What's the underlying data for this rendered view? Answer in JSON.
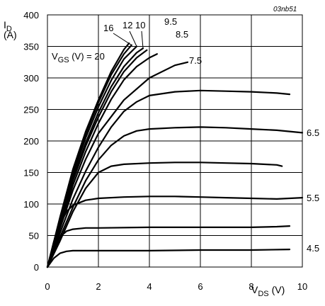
{
  "doc_id": "03nb51",
  "colors": {
    "line": "#000000",
    "grid": "#000000",
    "background": "#ffffff"
  },
  "chart_data": {
    "type": "line",
    "title": "",
    "xlabel": {
      "symbol": "V",
      "sub": "DS",
      "unit": "(V)"
    },
    "ylabel": {
      "symbol": "I",
      "sub": "D",
      "unit": "(A)"
    },
    "xlim": [
      0,
      10
    ],
    "ylim": [
      0,
      400
    ],
    "x_ticks": [
      0,
      2,
      4,
      6,
      8,
      10
    ],
    "y_ticks": [
      0,
      50,
      100,
      150,
      200,
      250,
      300,
      350,
      400
    ],
    "grid": true,
    "legend_title": {
      "prefix": "V",
      "sub": "GS",
      "suffix": " (V) = 20"
    },
    "series": [
      {
        "name": "20",
        "x": [
          0,
          0.5,
          1.0,
          1.5,
          2.0,
          2.5,
          3.0,
          3.2
        ],
        "y": [
          0,
          80,
          155,
          215,
          265,
          310,
          345,
          355
        ]
      },
      {
        "name": "16",
        "x": [
          0,
          0.5,
          1.0,
          1.5,
          2.0,
          2.5,
          3.0,
          3.3
        ],
        "y": [
          0,
          78,
          152,
          211,
          261,
          305,
          338,
          352
        ]
      },
      {
        "name": "12",
        "x": [
          0,
          0.5,
          1.0,
          1.5,
          2.0,
          2.5,
          3.0,
          3.5
        ],
        "y": [
          0,
          75,
          147,
          205,
          254,
          296,
          330,
          350
        ]
      },
      {
        "name": "10",
        "x": [
          0,
          0.5,
          1.0,
          1.5,
          2.0,
          2.5,
          3.0,
          3.5,
          3.75
        ],
        "y": [
          0,
          72,
          141,
          197,
          245,
          286,
          318,
          340,
          347
        ]
      },
      {
        "name": "9.5",
        "x": [
          0,
          0.5,
          1.0,
          1.5,
          2.0,
          2.5,
          3.0,
          3.5,
          3.9
        ],
        "y": [
          0,
          70,
          137,
          192,
          238,
          278,
          310,
          332,
          344
        ]
      },
      {
        "name": "8.5",
        "x": [
          0,
          0.5,
          1.0,
          1.5,
          2.0,
          2.5,
          3.0,
          3.5,
          4.0,
          4.3
        ],
        "y": [
          0,
          66,
          130,
          183,
          228,
          266,
          297,
          318,
          332,
          338
        ]
      },
      {
        "name": "7.5",
        "x": [
          0,
          0.5,
          1.0,
          1.5,
          2.0,
          3.0,
          4.0,
          5.0,
          5.5
        ],
        "y": [
          0,
          62,
          122,
          171,
          212,
          265,
          300,
          320,
          325
        ]
      },
      {
        "name": "",
        "x": [
          0,
          0.5,
          1.0,
          1.5,
          2.0,
          2.5,
          3.0,
          3.5,
          4.0,
          5.0,
          6.0,
          7.0,
          8.0,
          9.0,
          9.5
        ],
        "y": [
          0,
          55,
          108,
          152,
          190,
          222,
          247,
          262,
          272,
          278,
          280,
          279,
          278,
          276,
          274
        ]
      },
      {
        "name": "6.5",
        "x": [
          0,
          0.5,
          1.0,
          1.5,
          2.0,
          2.5,
          3.0,
          3.5,
          4.0,
          5.0,
          6.0,
          7.0,
          8.0,
          9.0,
          10.0
        ],
        "y": [
          0,
          48,
          95,
          137,
          170,
          193,
          208,
          216,
          219,
          221,
          222,
          221,
          219,
          217,
          213
        ]
      },
      {
        "name": "",
        "x": [
          0,
          0.5,
          1.0,
          1.5,
          2.0,
          2.5,
          3.0,
          4.0,
          5.0,
          6.0,
          7.0,
          8.0,
          9.0,
          9.2
        ],
        "y": [
          0,
          42,
          88,
          125,
          150,
          160,
          163,
          165,
          166,
          166,
          165,
          164,
          162,
          160
        ]
      },
      {
        "name": "5.5",
        "x": [
          0,
          0.25,
          0.5,
          0.75,
          1.0,
          1.5,
          2.0,
          3.0,
          4.0,
          5.0,
          6.0,
          7.0,
          8.0,
          9.0,
          10.0
        ],
        "y": [
          0,
          40,
          68,
          88,
          98,
          106,
          109,
          111,
          112,
          112,
          111,
          110,
          109,
          108,
          110
        ]
      },
      {
        "name": "",
        "x": [
          0,
          0.25,
          0.5,
          0.75,
          1.0,
          1.5,
          2.0,
          4.0,
          6.0,
          8.0,
          9.0,
          9.5
        ],
        "y": [
          0,
          30,
          48,
          57,
          60,
          62,
          62,
          63,
          63,
          63,
          64,
          65
        ]
      },
      {
        "name": "4.5",
        "x": [
          0,
          0.25,
          0.5,
          0.75,
          1.0,
          2.0,
          4.0,
          6.0,
          8.0,
          9.5
        ],
        "y": [
          0,
          14,
          22,
          25,
          26,
          26,
          26,
          27,
          27,
          28
        ]
      }
    ]
  }
}
